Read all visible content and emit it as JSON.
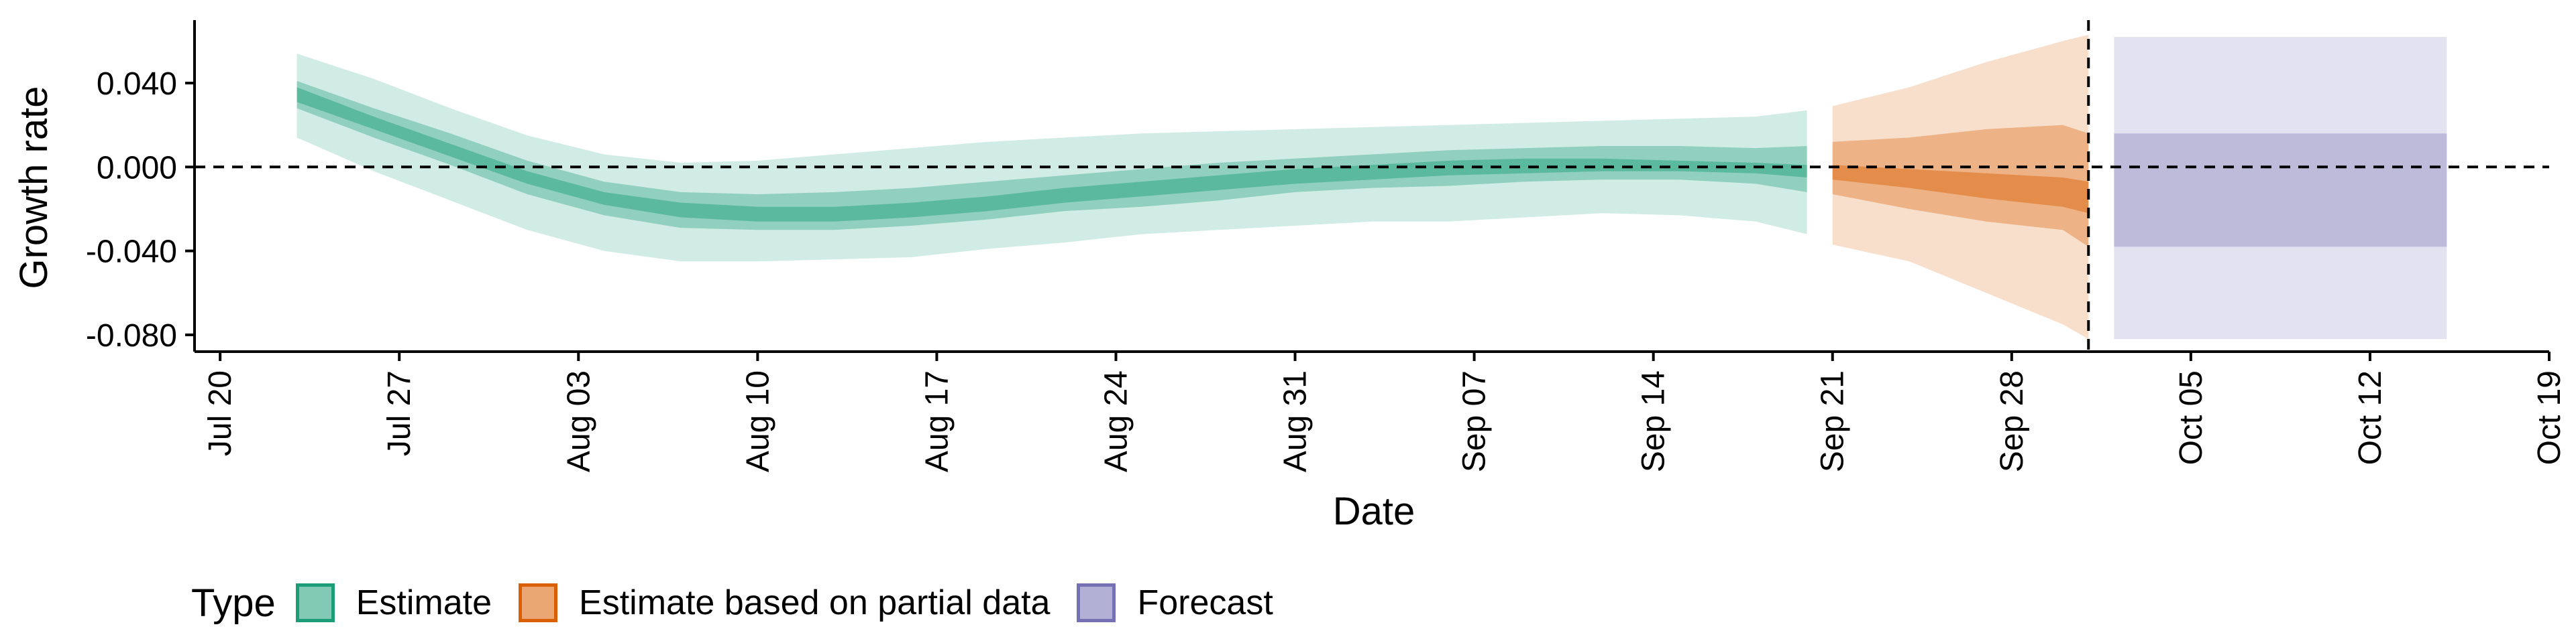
{
  "chart_data": {
    "type": "area",
    "xlabel": "Date",
    "ylabel": "Growth rate",
    "ylim": [
      -0.088,
      0.07
    ],
    "xlim": [
      "2020-07-19",
      "2020-10-19"
    ],
    "x_ticks": [
      {
        "date": "2020-07-20",
        "label": "Jul 20"
      },
      {
        "date": "2020-07-27",
        "label": "Jul 27"
      },
      {
        "date": "2020-08-03",
        "label": "Aug 03"
      },
      {
        "date": "2020-08-10",
        "label": "Aug 10"
      },
      {
        "date": "2020-08-17",
        "label": "Aug 17"
      },
      {
        "date": "2020-08-24",
        "label": "Aug 24"
      },
      {
        "date": "2020-08-31",
        "label": "Aug 31"
      },
      {
        "date": "2020-09-07",
        "label": "Sep 07"
      },
      {
        "date": "2020-09-14",
        "label": "Sep 14"
      },
      {
        "date": "2020-09-21",
        "label": "Sep 21"
      },
      {
        "date": "2020-09-28",
        "label": "Sep 28"
      },
      {
        "date": "2020-10-05",
        "label": "Oct 05"
      },
      {
        "date": "2020-10-12",
        "label": "Oct 12"
      },
      {
        "date": "2020-10-19",
        "label": "Oct 19"
      }
    ],
    "y_ticks": [
      {
        "value": 0.04,
        "label": "0.040"
      },
      {
        "value": 0.0,
        "label": "0.000"
      },
      {
        "value": -0.04,
        "label": "-0.040"
      },
      {
        "value": -0.08,
        "label": "-0.080"
      }
    ],
    "reference_lines": {
      "horizontal_y": 0.0,
      "vertical_date": "2020-10-01",
      "style": "dashed"
    },
    "grid": false,
    "legend": {
      "title": "Type",
      "position": "bottom-left"
    },
    "series": [
      {
        "name": "Estimate",
        "color": "#1b9e77",
        "x": [
          "2020-07-23",
          "2020-07-26",
          "2020-07-29",
          "2020-08-01",
          "2020-08-04",
          "2020-08-07",
          "2020-08-10",
          "2020-08-13",
          "2020-08-16",
          "2020-08-19",
          "2020-08-22",
          "2020-08-25",
          "2020-08-28",
          "2020-08-31",
          "2020-09-03",
          "2020-09-06",
          "2020-09-09",
          "2020-09-12",
          "2020-09-15",
          "2020-09-18",
          "2020-09-20"
        ],
        "lower_90": [
          0.014,
          -0.002,
          -0.016,
          -0.03,
          -0.04,
          -0.045,
          -0.045,
          -0.044,
          -0.043,
          -0.039,
          -0.036,
          -0.032,
          -0.03,
          -0.028,
          -0.026,
          -0.026,
          -0.024,
          -0.022,
          -0.023,
          -0.026,
          -0.032
        ],
        "lower_50": [
          0.028,
          0.014,
          0.001,
          -0.013,
          -0.023,
          -0.029,
          -0.03,
          -0.03,
          -0.028,
          -0.025,
          -0.021,
          -0.019,
          -0.016,
          -0.012,
          -0.01,
          -0.009,
          -0.007,
          -0.006,
          -0.006,
          -0.008,
          -0.012
        ],
        "lower_20": [
          0.031,
          0.018,
          0.005,
          -0.008,
          -0.018,
          -0.024,
          -0.026,
          -0.026,
          -0.024,
          -0.021,
          -0.017,
          -0.014,
          -0.011,
          -0.008,
          -0.006,
          -0.004,
          -0.003,
          -0.002,
          -0.002,
          -0.003,
          -0.005
        ],
        "upper_20": [
          0.038,
          0.024,
          0.011,
          -0.002,
          -0.012,
          -0.017,
          -0.019,
          -0.019,
          -0.017,
          -0.014,
          -0.01,
          -0.007,
          -0.004,
          -0.001,
          0.001,
          0.003,
          0.004,
          0.004,
          0.003,
          0.002,
          0.001
        ],
        "upper_50": [
          0.041,
          0.028,
          0.016,
          0.003,
          -0.007,
          -0.012,
          -0.013,
          -0.012,
          -0.01,
          -0.007,
          -0.004,
          -0.001,
          0.002,
          0.004,
          0.006,
          0.008,
          0.009,
          0.01,
          0.01,
          0.009,
          0.01
        ],
        "upper_90": [
          0.054,
          0.042,
          0.028,
          0.015,
          0.006,
          0.002,
          0.003,
          0.006,
          0.009,
          0.012,
          0.014,
          0.016,
          0.017,
          0.018,
          0.019,
          0.02,
          0.021,
          0.022,
          0.023,
          0.024,
          0.027
        ]
      },
      {
        "name": "Estimate based on partial data",
        "color": "#d95f02",
        "x": [
          "2020-09-21",
          "2020-09-24",
          "2020-09-27",
          "2020-09-30",
          "2020-10-01"
        ],
        "lower_90": [
          -0.037,
          -0.045,
          -0.06,
          -0.075,
          -0.082
        ],
        "lower_50": [
          -0.013,
          -0.02,
          -0.026,
          -0.03,
          -0.038
        ],
        "lower_20": [
          -0.006,
          -0.01,
          -0.015,
          -0.019,
          -0.022
        ],
        "upper_20": [
          0.001,
          -0.001,
          -0.003,
          -0.005,
          -0.007
        ],
        "upper_50": [
          0.012,
          0.014,
          0.018,
          0.02,
          0.016
        ],
        "upper_90": [
          0.029,
          0.038,
          0.05,
          0.06,
          0.063
        ]
      },
      {
        "name": "Forecast",
        "color": "#7570b3",
        "x": [
          "2020-10-02",
          "2020-10-15"
        ],
        "lower_90": [
          -0.082,
          -0.082
        ],
        "lower_50": [
          -0.038,
          -0.038
        ],
        "upper_50": [
          0.016,
          0.016
        ],
        "upper_90": [
          0.062,
          0.062
        ]
      }
    ]
  }
}
